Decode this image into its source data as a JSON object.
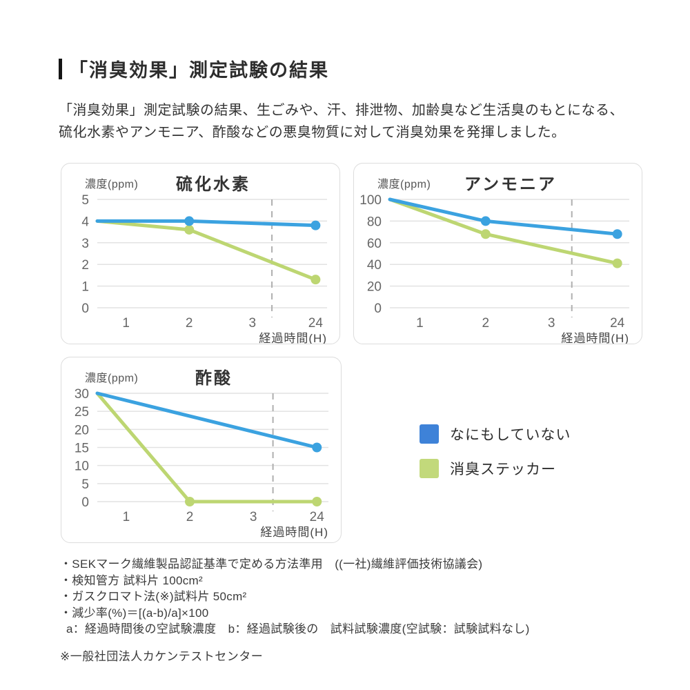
{
  "page": {
    "title": "「消臭効果」測定試験の結果",
    "description_lines": [
      "「消臭効果」測定試験の結果、生ごみや、汗、排泄物、加齢臭など生活臭のもとになる、",
      "硫化水素やアンモニア、酢酸などの悪臭物質に対して消臭効果を発揮しました。"
    ]
  },
  "colors": {
    "line_blue": "#3BA2E0",
    "line_green": "#BDD672",
    "legend_blue": "#3E82D8",
    "legend_green": "#C2D97B",
    "grid": "#E2E2E2",
    "dashed": "#AFAFAF"
  },
  "legend": {
    "items": [
      {
        "label": "なにもしていない",
        "color_key": "blue"
      },
      {
        "label": "消臭ステッカー",
        "color_key": "green"
      }
    ]
  },
  "chart_data": [
    {
      "type": "line",
      "title": "硫化水素",
      "y_unit": "濃度(ppm)",
      "xlabel": "経過時間(H)",
      "categories": [
        "1",
        "2",
        "3",
        "24"
      ],
      "yticks": [
        0,
        1,
        2,
        3,
        4,
        5
      ],
      "ymax": 5,
      "grid": true,
      "dashed_guide_between": "3 and 24",
      "series": [
        {
          "name": "なにもしていない",
          "color": "blue",
          "x": [
            0,
            2,
            24
          ],
          "values": [
            4,
            4,
            3.8
          ],
          "dots": [
            false,
            true,
            true
          ]
        },
        {
          "name": "消臭ステッカー",
          "color": "green",
          "x": [
            0,
            2,
            24
          ],
          "values": [
            4,
            3.6,
            1.3
          ],
          "dots": [
            false,
            true,
            true
          ]
        }
      ]
    },
    {
      "type": "line",
      "title": "アンモニア",
      "y_unit": "濃度(ppm)",
      "xlabel": "経過時間(H)",
      "categories": [
        "1",
        "2",
        "3",
        "24"
      ],
      "yticks": [
        0,
        20,
        40,
        60,
        80,
        100
      ],
      "ymax": 100,
      "grid": true,
      "dashed_guide_between": "3 and 24",
      "series": [
        {
          "name": "なにもしていない",
          "color": "blue",
          "x": [
            0,
            2,
            24
          ],
          "values": [
            100,
            80,
            68
          ],
          "dots": [
            false,
            true,
            true
          ]
        },
        {
          "name": "消臭ステッカー",
          "color": "green",
          "x": [
            0,
            2,
            24
          ],
          "values": [
            100,
            68,
            41
          ],
          "dots": [
            false,
            true,
            true
          ]
        }
      ]
    },
    {
      "type": "line",
      "title": "酢酸",
      "y_unit": "濃度(ppm)",
      "xlabel": "経過時間(H)",
      "categories": [
        "1",
        "2",
        "3",
        "24"
      ],
      "yticks": [
        0,
        5,
        10,
        15,
        20,
        25,
        30
      ],
      "ymax": 30,
      "grid": true,
      "dashed_guide_between": "3 and 24",
      "series": [
        {
          "name": "なにもしていない",
          "color": "blue",
          "x": [
            0,
            24
          ],
          "values": [
            30,
            15
          ],
          "dots": [
            false,
            true
          ]
        },
        {
          "name": "消臭ステッカー",
          "color": "green",
          "x": [
            0,
            2,
            24
          ],
          "values": [
            30,
            0,
            0
          ],
          "dots": [
            false,
            true,
            true
          ]
        }
      ]
    }
  ],
  "footnotes": [
    "・SEKマーク繊維製品認証基準で定める方法準用　((一社)繊維評価技術協議会)",
    "・検知管方 試料片 100cm²",
    "・ガスクロマト法(※)試料片 50cm²",
    "・減少率(%)＝[(a-b)/a]×100",
    "a：経過時間後の空試験濃度　b：経過試験後の　試料試験濃度(空試験：試験試料なし)"
  ],
  "asterisk_note": "※一般社団法人カケンテストセンター"
}
